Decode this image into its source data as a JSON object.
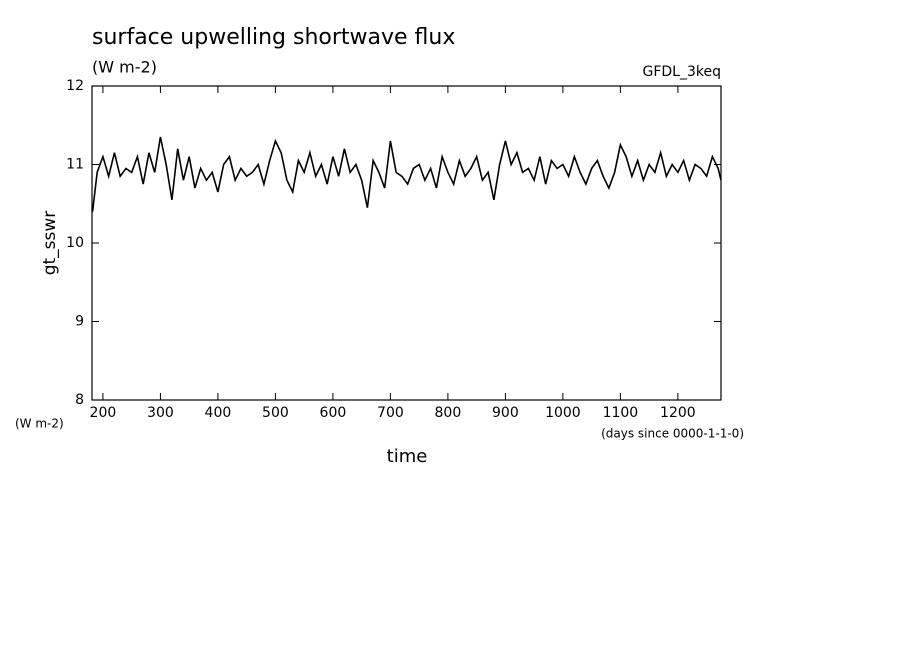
{
  "chart_data": {
    "type": "line",
    "title": "surface upwelling shortwave flux",
    "subtitle": "(W m-2)",
    "annotation": "GFDL_3keq",
    "y_label": "gt_sswr",
    "y_unit": "(W m-2)",
    "x_label": "time",
    "x_unit": "(days since 0000-1-1-0)",
    "xlim": [
      181,
      1275
    ],
    "ylim": [
      8,
      12
    ],
    "xticks": [
      200,
      300,
      400,
      500,
      600,
      700,
      800,
      900,
      1000,
      1100,
      1200
    ],
    "yticks": [
      8,
      9,
      10,
      11,
      12
    ],
    "x": [
      182,
      190,
      200,
      210,
      220,
      230,
      240,
      250,
      260,
      270,
      280,
      290,
      300,
      310,
      320,
      330,
      340,
      350,
      360,
      370,
      380,
      390,
      400,
      410,
      420,
      430,
      440,
      450,
      460,
      470,
      480,
      490,
      500,
      510,
      520,
      530,
      540,
      550,
      560,
      570,
      580,
      590,
      600,
      610,
      620,
      630,
      640,
      650,
      660,
      670,
      680,
      690,
      700,
      710,
      720,
      730,
      740,
      750,
      760,
      770,
      780,
      790,
      800,
      810,
      820,
      830,
      840,
      850,
      860,
      870,
      880,
      890,
      900,
      910,
      920,
      930,
      940,
      950,
      960,
      970,
      980,
      990,
      1000,
      1010,
      1020,
      1030,
      1040,
      1050,
      1060,
      1070,
      1080,
      1090,
      1100,
      1110,
      1120,
      1130,
      1140,
      1150,
      1160,
      1170,
      1180,
      1190,
      1200,
      1210,
      1220,
      1230,
      1240,
      1250,
      1260,
      1270,
      1275
    ],
    "series": [
      {
        "name": "gt_sswr",
        "color": "#000000",
        "values": [
          10.4,
          10.9,
          11.1,
          10.85,
          11.15,
          10.85,
          10.95,
          10.9,
          11.1,
          10.75,
          11.15,
          10.9,
          11.35,
          11.0,
          10.55,
          11.2,
          10.8,
          11.1,
          10.7,
          10.95,
          10.8,
          10.9,
          10.65,
          11.0,
          11.1,
          10.8,
          10.95,
          10.85,
          10.9,
          11.0,
          10.75,
          11.05,
          11.3,
          11.15,
          10.8,
          10.65,
          11.05,
          10.9,
          11.15,
          10.85,
          11.0,
          10.75,
          11.1,
          10.85,
          11.2,
          10.9,
          11.0,
          10.8,
          10.45,
          11.05,
          10.9,
          10.7,
          11.3,
          10.9,
          10.85,
          10.75,
          10.95,
          11.0,
          10.8,
          10.95,
          10.7,
          11.1,
          10.9,
          10.75,
          11.05,
          10.85,
          10.95,
          11.1,
          10.8,
          10.9,
          10.55,
          11.0,
          11.3,
          11.0,
          11.15,
          10.9,
          10.95,
          10.8,
          11.1,
          10.75,
          11.05,
          10.95,
          11.0,
          10.85,
          11.1,
          10.9,
          10.75,
          10.95,
          11.05,
          10.85,
          10.7,
          10.9,
          11.25,
          11.1,
          10.85,
          11.05,
          10.8,
          11.0,
          10.9,
          11.15,
          10.85,
          11.0,
          10.9,
          11.05,
          10.8,
          11.0,
          10.95,
          10.85,
          11.1,
          10.95,
          10.8
        ]
      }
    ]
  }
}
